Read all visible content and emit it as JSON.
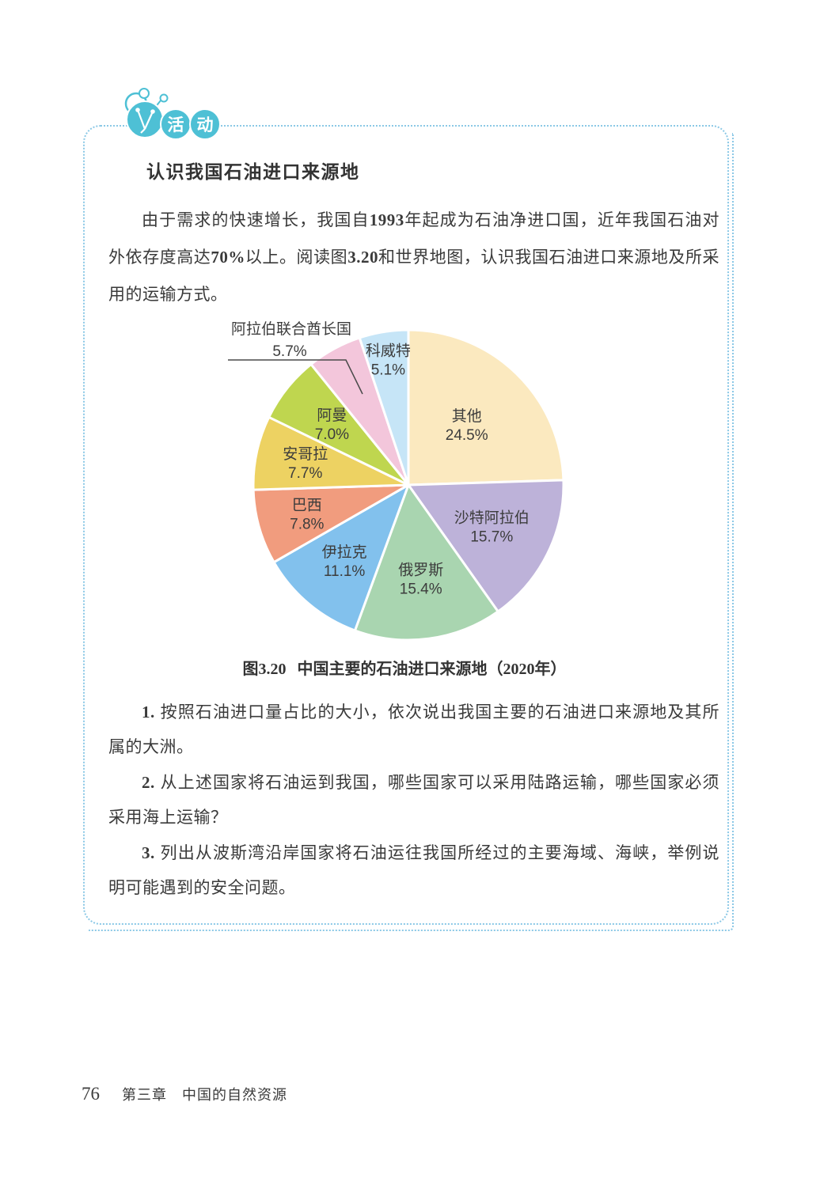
{
  "colors": {
    "badge_teal": "#4ec0d5",
    "box_border_blue": "#8bc8e6",
    "text_dark": "#3a3a3a"
  },
  "activity": {
    "badge": {
      "chars": [
        "活",
        "动"
      ],
      "icon": "compass-activity-icon"
    },
    "title": "认识我国石油进口来源地",
    "intro_runs": [
      {
        "t": "由于需求的快速增长，我国自"
      },
      {
        "t": "1993",
        "b": true
      },
      {
        "t": "年起成为石油净进口国，近年我国石油对外依存度高达"
      },
      {
        "t": "70%",
        "b": true
      },
      {
        "t": "以上。阅读图"
      },
      {
        "t": "3.20",
        "b": true
      },
      {
        "t": "和世界地图，认识我国石油进口来源地及所采用的运输方式。"
      }
    ],
    "caption": {
      "figure": "图3.20",
      "rest": "中国主要的石油进口来源地（2020年）"
    },
    "questions": [
      {
        "runs": [
          {
            "t": "1.",
            "b": true
          },
          {
            "t": " 按照石油进口量占比的大小，依次说出我国主要的石油进口来源地及其所属的大洲。"
          }
        ]
      },
      {
        "runs": [
          {
            "t": "2.",
            "b": true
          },
          {
            "t": " 从上述国家将石油运到我国，哪些国家可以采用陆路运输，哪些国家必须采用海上运输？"
          }
        ]
      },
      {
        "runs": [
          {
            "t": "3.",
            "b": true
          },
          {
            "t": " 列出从波斯湾沿岸国家将石油运往我国所经过的主要海域、海峡，举例说明可能遇到的安全问题。"
          }
        ]
      }
    ]
  },
  "chart_data": {
    "type": "pie",
    "title": "中国主要的石油进口来源地（2020年）",
    "year": "2020",
    "start_angle_deg": 0,
    "direction": "clockwise",
    "value_format": "percent_1dp",
    "slices": [
      {
        "label": "其他",
        "value": 24.5,
        "color": "#FBE9BF",
        "label_r": 0.54
      },
      {
        "label": "沙特阿拉伯",
        "value": 15.7,
        "color": "#BDB2D9",
        "label_r": 0.6
      },
      {
        "label": "俄罗斯",
        "value": 15.4,
        "color": "#A9D5B0",
        "label_r": 0.61
      },
      {
        "label": "伊拉克",
        "value": 11.1,
        "color": "#82C1ED",
        "label_r": 0.64
      },
      {
        "label": "巴西",
        "value": 7.8,
        "color": "#F19C7E",
        "label_r": 0.68
      },
      {
        "label": "安哥拉",
        "value": 7.7,
        "color": "#EDD262",
        "label_r": 0.68
      },
      {
        "label": "阿曼",
        "value": 7.0,
        "color": "#BFD64F",
        "label_r": 0.63
      },
      {
        "label": "阿拉伯联合酋长国",
        "value": 5.7,
        "color": "#F3C6DB",
        "label_external": true
      },
      {
        "label": "科威特",
        "value": 5.1,
        "color": "#C6E5F7",
        "label_r": 0.82
      }
    ]
  },
  "footer": {
    "page_number": "76",
    "chapter": "第三章　中国的自然资源"
  }
}
